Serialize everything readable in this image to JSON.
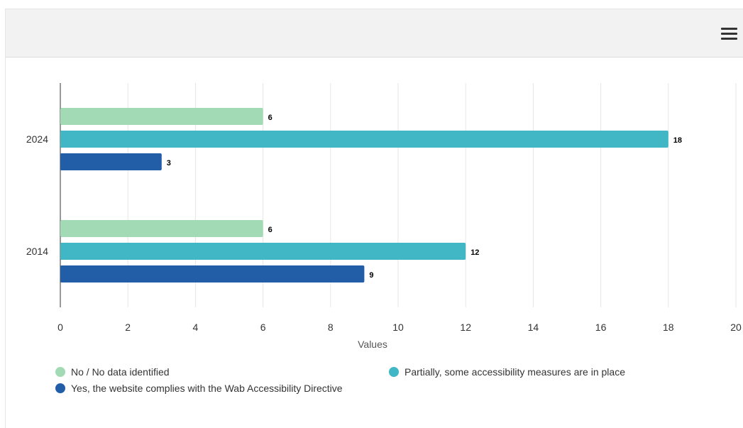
{
  "toolbar": {
    "menu_icon": "hamburger-menu-icon"
  },
  "chart_data": {
    "type": "bar",
    "orientation": "horizontal",
    "categories": [
      "2024",
      "2014"
    ],
    "series": [
      {
        "name": "No / No data identified",
        "values": [
          6,
          6
        ],
        "color": "#a1dab4"
      },
      {
        "name": "Partially, some accessibility measures are in place",
        "values": [
          18,
          12
        ],
        "color": "#41b6c4"
      },
      {
        "name": "Yes, the website complies with the Wab Accessibility Directive",
        "values": [
          3,
          9
        ],
        "color": "#225ea8"
      }
    ],
    "xlabel": "Values",
    "xlim": [
      0,
      20
    ],
    "xticks": [
      "0",
      "2",
      "4",
      "6",
      "8",
      "10",
      "12",
      "14",
      "16",
      "18",
      "20"
    ],
    "grid": true,
    "data_labels": true,
    "legend_position": "bottom"
  }
}
